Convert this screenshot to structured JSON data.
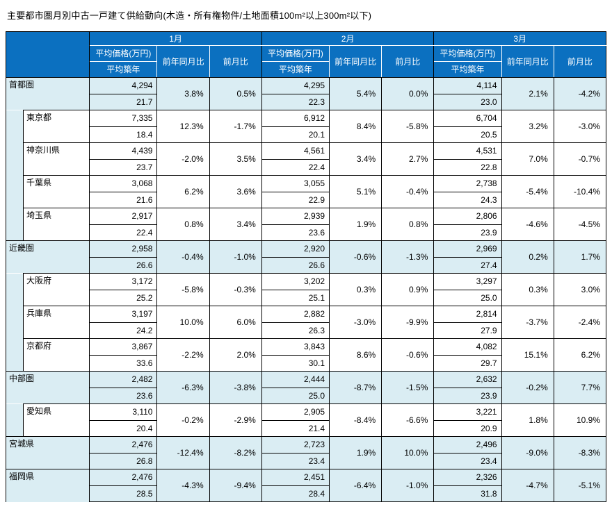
{
  "title": "主要都市圏月別中古一戸建て供給動向(木造・所有権物件/土地面積100m²以上300m²以下)",
  "colors": {
    "header_blue": "#0b70c0",
    "row_highlight": "#daedf3",
    "grid": "#000000",
    "header_grid": "#ffffff"
  },
  "table": {
    "months": [
      "1月",
      "2月",
      "3月"
    ],
    "sub_headers": {
      "price": "平均価格(万円)",
      "age": "平均築年",
      "yoy": "前年同月比",
      "mom": "前月比"
    },
    "rows": [
      {
        "label": "首都圏",
        "type": "region",
        "children": 4,
        "months": [
          {
            "price": "4,294",
            "age": "21.7",
            "yoy": "3.8%",
            "mom": "0.5%"
          },
          {
            "price": "4,295",
            "age": "22.3",
            "yoy": "5.4%",
            "mom": "0.0%"
          },
          {
            "price": "4,114",
            "age": "23.0",
            "yoy": "2.1%",
            "mom": "-4.2%"
          }
        ]
      },
      {
        "label": "東京都",
        "type": "prefecture",
        "months": [
          {
            "price": "7,335",
            "age": "18.4",
            "yoy": "12.3%",
            "mom": "-1.7%"
          },
          {
            "price": "6,912",
            "age": "20.1",
            "yoy": "8.4%",
            "mom": "-5.8%"
          },
          {
            "price": "6,704",
            "age": "20.5",
            "yoy": "3.2%",
            "mom": "-3.0%"
          }
        ]
      },
      {
        "label": "神奈川県",
        "type": "prefecture",
        "months": [
          {
            "price": "4,439",
            "age": "23.7",
            "yoy": "-2.0%",
            "mom": "3.5%"
          },
          {
            "price": "4,561",
            "age": "22.4",
            "yoy": "3.4%",
            "mom": "2.7%"
          },
          {
            "price": "4,531",
            "age": "22.8",
            "yoy": "7.0%",
            "mom": "-0.7%"
          }
        ]
      },
      {
        "label": "千葉県",
        "type": "prefecture",
        "months": [
          {
            "price": "3,068",
            "age": "21.6",
            "yoy": "6.2%",
            "mom": "3.6%"
          },
          {
            "price": "3,055",
            "age": "22.9",
            "yoy": "5.1%",
            "mom": "-0.4%"
          },
          {
            "price": "2,738",
            "age": "24.3",
            "yoy": "-5.4%",
            "mom": "-10.4%"
          }
        ]
      },
      {
        "label": "埼玉県",
        "type": "prefecture",
        "months": [
          {
            "price": "2,917",
            "age": "22.4",
            "yoy": "0.8%",
            "mom": "3.4%"
          },
          {
            "price": "2,939",
            "age": "23.6",
            "yoy": "1.9%",
            "mom": "0.8%"
          },
          {
            "price": "2,806",
            "age": "23.9",
            "yoy": "-4.6%",
            "mom": "-4.5%"
          }
        ]
      },
      {
        "label": "近畿圏",
        "type": "region",
        "children": 3,
        "months": [
          {
            "price": "2,958",
            "age": "26.6",
            "yoy": "-0.4%",
            "mom": "-1.0%"
          },
          {
            "price": "2,920",
            "age": "26.6",
            "yoy": "-0.6%",
            "mom": "-1.3%"
          },
          {
            "price": "2,969",
            "age": "27.4",
            "yoy": "0.2%",
            "mom": "1.7%"
          }
        ]
      },
      {
        "label": "大阪府",
        "type": "prefecture",
        "months": [
          {
            "price": "3,172",
            "age": "25.2",
            "yoy": "-5.8%",
            "mom": "-0.3%"
          },
          {
            "price": "3,202",
            "age": "25.1",
            "yoy": "0.3%",
            "mom": "0.9%"
          },
          {
            "price": "3,297",
            "age": "25.0",
            "yoy": "0.3%",
            "mom": "3.0%"
          }
        ]
      },
      {
        "label": "兵庫県",
        "type": "prefecture",
        "months": [
          {
            "price": "3,197",
            "age": "24.2",
            "yoy": "10.0%",
            "mom": "6.0%"
          },
          {
            "price": "2,882",
            "age": "26.3",
            "yoy": "-3.0%",
            "mom": "-9.9%"
          },
          {
            "price": "2,814",
            "age": "27.9",
            "yoy": "-3.7%",
            "mom": "-2.4%"
          }
        ]
      },
      {
        "label": "京都府",
        "type": "prefecture",
        "months": [
          {
            "price": "3,867",
            "age": "33.6",
            "yoy": "-2.2%",
            "mom": "2.0%"
          },
          {
            "price": "3,843",
            "age": "30.1",
            "yoy": "8.6%",
            "mom": "-0.6%"
          },
          {
            "price": "4,082",
            "age": "29.7",
            "yoy": "15.1%",
            "mom": "6.2%"
          }
        ]
      },
      {
        "label": "中部圏",
        "type": "region",
        "children": 1,
        "months": [
          {
            "price": "2,482",
            "age": "23.6",
            "yoy": "-6.3%",
            "mom": "-3.8%"
          },
          {
            "price": "2,444",
            "age": "25.0",
            "yoy": "-8.7%",
            "mom": "-1.5%"
          },
          {
            "price": "2,632",
            "age": "23.9",
            "yoy": "-0.2%",
            "mom": "7.7%"
          }
        ]
      },
      {
        "label": "愛知県",
        "type": "prefecture",
        "months": [
          {
            "price": "3,110",
            "age": "20.4",
            "yoy": "-0.2%",
            "mom": "-2.9%"
          },
          {
            "price": "2,905",
            "age": "21.4",
            "yoy": "-8.4%",
            "mom": "-6.6%"
          },
          {
            "price": "3,221",
            "age": "20.9",
            "yoy": "1.8%",
            "mom": "10.9%"
          }
        ]
      },
      {
        "label": "宮城県",
        "type": "region",
        "children": 0,
        "months": [
          {
            "price": "2,476",
            "age": "26.8",
            "yoy": "-12.4%",
            "mom": "-8.2%"
          },
          {
            "price": "2,723",
            "age": "23.4",
            "yoy": "1.9%",
            "mom": "10.0%"
          },
          {
            "price": "2,496",
            "age": "23.4",
            "yoy": "-9.0%",
            "mom": "-8.3%"
          }
        ]
      },
      {
        "label": "福岡県",
        "type": "region",
        "children": 0,
        "months": [
          {
            "price": "2,476",
            "age": "28.5",
            "yoy": "-4.3%",
            "mom": "-9.4%"
          },
          {
            "price": "2,451",
            "age": "28.4",
            "yoy": "-6.4%",
            "mom": "-1.0%"
          },
          {
            "price": "2,326",
            "age": "31.8",
            "yoy": "-4.7%",
            "mom": "-5.1%"
          }
        ]
      }
    ]
  }
}
